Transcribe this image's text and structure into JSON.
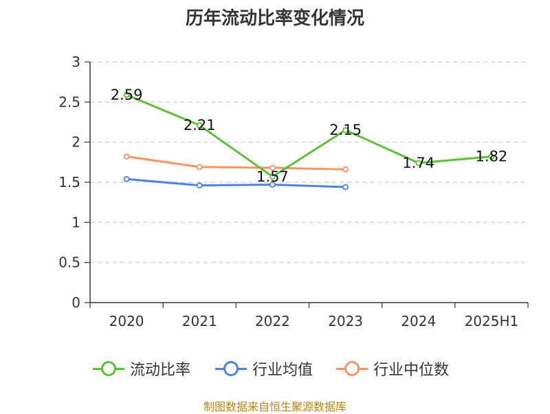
{
  "chart_data": {
    "type": "line",
    "title": "历年流动比率变化情况",
    "categories": [
      "2020",
      "2021",
      "2022",
      "2023",
      "2024",
      "2025H1"
    ],
    "ylim": [
      0,
      3
    ],
    "yticks": [
      "0",
      "0.5",
      "1",
      "1.5",
      "2",
      "2.5",
      "3"
    ],
    "grid": true,
    "legend_position": "bottom",
    "series": [
      {
        "name": "流动比率",
        "color": "#5bc236",
        "values": [
          2.59,
          2.21,
          1.57,
          2.15,
          1.74,
          1.82
        ],
        "labels": [
          "2.59",
          "2.21",
          "1.57",
          "2.15",
          "1.74",
          "1.82"
        ]
      },
      {
        "name": "行业均值",
        "color": "#4f81e0",
        "values": [
          1.54,
          1.46,
          1.47,
          1.44,
          null,
          null
        ]
      },
      {
        "name": "行业中位数",
        "color": "#f79462",
        "values": [
          1.82,
          1.69,
          1.68,
          1.66,
          null,
          null
        ]
      }
    ]
  },
  "footer": {
    "source": "制图数据来自恒生聚源数据库"
  }
}
